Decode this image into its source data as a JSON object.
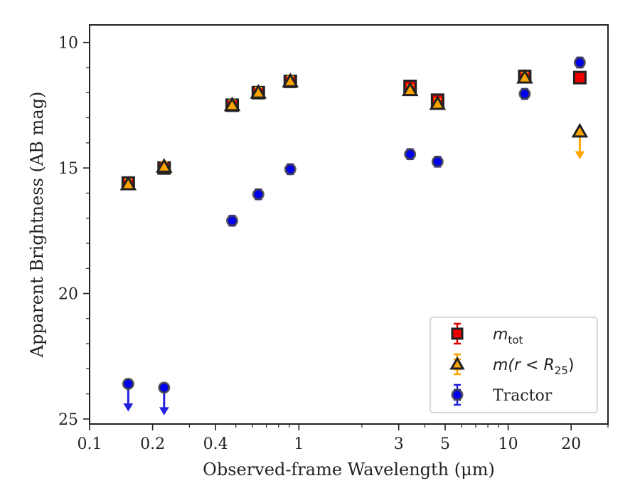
{
  "chart_data": {
    "type": "scatter",
    "xscale": "log",
    "yinverted": true,
    "xlim": [
      0.1,
      30
    ],
    "ylim": [
      9.3,
      25.2
    ],
    "xlabel": "Observed-frame Wavelength (μm)",
    "ylabel": "Apparent Brightness (AB mag)",
    "xticks": [
      {
        "value": 0.1,
        "label": "0.1"
      },
      {
        "value": 0.2,
        "label": "0.2"
      },
      {
        "value": 0.4,
        "label": "0.4"
      },
      {
        "value": 1,
        "label": "1"
      },
      {
        "value": 3,
        "label": "3"
      },
      {
        "value": 5,
        "label": "5"
      },
      {
        "value": 10,
        "label": "10"
      },
      {
        "value": 20,
        "label": "20"
      }
    ],
    "yticks": [
      {
        "value": 10,
        "label": "10"
      },
      {
        "value": 15,
        "label": "15"
      },
      {
        "value": 20,
        "label": "20"
      },
      {
        "value": 25,
        "label": "25"
      }
    ],
    "legend_position": "lower-right",
    "series": [
      {
        "name": "m_tot",
        "legend_main": "m",
        "legend_sub": "tot",
        "marker": "square",
        "color": "#ee0000",
        "errcolor": "#dd0000",
        "points": [
          {
            "x": 0.153,
            "y": 15.6
          },
          {
            "x": 0.227,
            "y": 15.0
          },
          {
            "x": 0.48,
            "y": 12.5
          },
          {
            "x": 0.64,
            "y": 12.0
          },
          {
            "x": 0.91,
            "y": 11.55
          },
          {
            "x": 3.4,
            "y": 11.75
          },
          {
            "x": 4.6,
            "y": 12.3
          },
          {
            "x": 12.0,
            "y": 11.35
          },
          {
            "x": 22.0,
            "y": 11.4
          }
        ]
      },
      {
        "name": "m(r < R_25)",
        "legend_main": "m(r < R",
        "legend_sub": "25",
        "legend_tail": ")",
        "marker": "triangle",
        "color": "#ffa500",
        "errcolor": "#ffa500",
        "points": [
          {
            "x": 0.153,
            "y": 15.65
          },
          {
            "x": 0.227,
            "y": 14.95
          },
          {
            "x": 0.48,
            "y": 12.5
          },
          {
            "x": 0.64,
            "y": 12.0
          },
          {
            "x": 0.91,
            "y": 11.55
          },
          {
            "x": 3.4,
            "y": 11.9
          },
          {
            "x": 4.6,
            "y": 12.45
          },
          {
            "x": 12.0,
            "y": 11.4
          },
          {
            "x": 22.0,
            "y": 13.55,
            "upper_limit": true
          }
        ]
      },
      {
        "name": "Tractor",
        "legend_main": "Tractor",
        "marker": "circle",
        "color": "#0000ee",
        "errcolor": "#2222dd",
        "points": [
          {
            "x": 0.153,
            "y": 23.6,
            "upper_limit": true
          },
          {
            "x": 0.227,
            "y": 23.75,
            "upper_limit": true
          },
          {
            "x": 0.48,
            "y": 17.1
          },
          {
            "x": 0.64,
            "y": 16.05
          },
          {
            "x": 0.91,
            "y": 15.05
          },
          {
            "x": 3.4,
            "y": 14.45
          },
          {
            "x": 4.6,
            "y": 14.75
          },
          {
            "x": 12.0,
            "y": 12.05
          },
          {
            "x": 22.0,
            "y": 10.8
          }
        ]
      }
    ]
  }
}
